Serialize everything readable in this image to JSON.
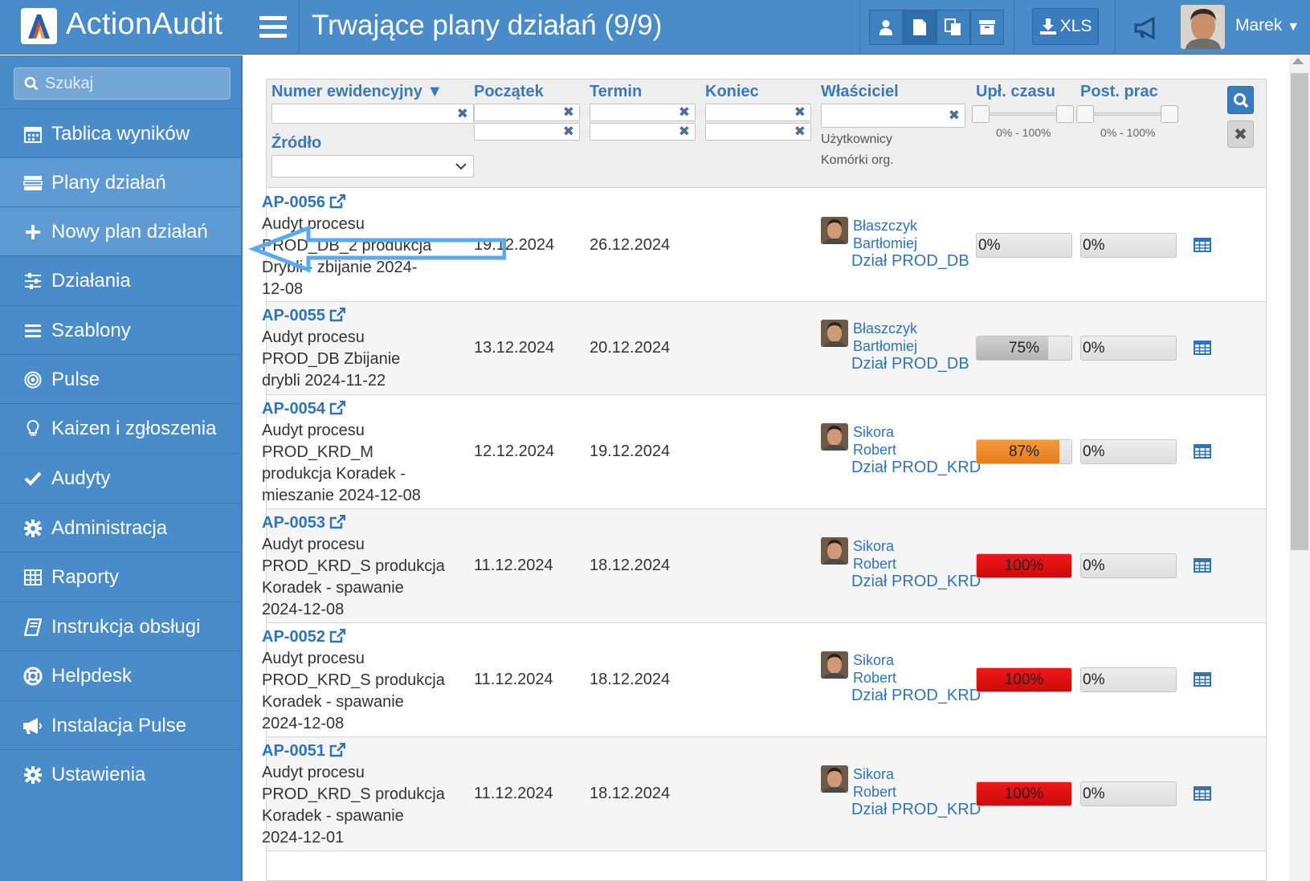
{
  "app": {
    "brand": "ActionAudit",
    "page_title": "Trwające plany działań (9/9)"
  },
  "toolbar": {
    "xls_label": "XLS",
    "user_name": "Marek"
  },
  "sidebar": {
    "search_placeholder": "Szukaj",
    "items": [
      {
        "label": "Tablica wyników",
        "icon": "calendar-icon"
      },
      {
        "label": "Plany działań",
        "icon": "tasks-icon"
      },
      {
        "label": "Nowy plan działań",
        "icon": "plus-icon"
      },
      {
        "label": "Działania",
        "icon": "sliders-icon"
      },
      {
        "label": "Szablony",
        "icon": "list-icon"
      },
      {
        "label": "Pulse",
        "icon": "target-icon"
      },
      {
        "label": "Kaizen i zgłoszenia",
        "icon": "lightbulb-icon"
      },
      {
        "label": "Audyty",
        "icon": "check-icon"
      },
      {
        "label": "Administracja",
        "icon": "gear-icon"
      },
      {
        "label": "Raporty",
        "icon": "table-icon"
      },
      {
        "label": "Instrukcja obsługi",
        "icon": "book-icon"
      },
      {
        "label": "Helpdesk",
        "icon": "lifebuoy-icon"
      },
      {
        "label": "Instalacja Pulse",
        "icon": "megaphone-icon"
      },
      {
        "label": "Ustawienia",
        "icon": "gear-icon"
      }
    ]
  },
  "table": {
    "headers": {
      "numer": "Numer ewidencyjny ▼",
      "zrodlo": "Źródło",
      "poczatek": "Początek",
      "termin": "Termin",
      "koniec": "Koniec",
      "wlasciciel": "Właściciel",
      "uzytkownicy": "Użytkownicy",
      "komorki": "Komórki org.",
      "uplyw": "Upł. czasu",
      "postep": "Post. prac",
      "range_uplyw": "0% - 100%",
      "range_postep": "0% - 100%"
    },
    "rows": [
      {
        "id": "AP-0056",
        "desc": [
          "Audyt procesu",
          "PROD_DB_2 produkcja",
          "Drybli - zbijanie 2024-",
          "12-08"
        ],
        "start": "19.12.2024",
        "term": "26.12.2024",
        "owner": [
          "Błaszczyk",
          "Bartłomiej"
        ],
        "dept": "Dział PROD_DB",
        "elapsed": "0%",
        "progress": "0%"
      },
      {
        "id": "AP-0055",
        "desc": [
          "Audyt procesu",
          "PROD_DB Zbijanie",
          "drybli 2024-11-22"
        ],
        "start": "13.12.2024",
        "term": "20.12.2024",
        "owner": [
          "Błaszczyk",
          "Bartłomiej"
        ],
        "dept": "Dział PROD_DB",
        "elapsed": "75%",
        "progress": "0%"
      },
      {
        "id": "AP-0054",
        "desc": [
          "Audyt procesu",
          "PROD_KRD_M",
          "produkcja Koradek -",
          "mieszanie 2024-12-08"
        ],
        "start": "12.12.2024",
        "term": "19.12.2024",
        "owner": [
          "Sikora",
          "Robert"
        ],
        "dept": "Dział PROD_KRD",
        "elapsed": "87%",
        "progress": "0%"
      },
      {
        "id": "AP-0053",
        "desc": [
          "Audyt procesu",
          "PROD_KRD_S produkcja",
          "Koradek - spawanie",
          "2024-12-08"
        ],
        "start": "11.12.2024",
        "term": "18.12.2024",
        "owner": [
          "Sikora",
          "Robert"
        ],
        "dept": "Dział PROD_KRD",
        "elapsed": "100%",
        "progress": "0%"
      },
      {
        "id": "AP-0052",
        "desc": [
          "Audyt procesu",
          "PROD_KRD_S produkcja",
          "Koradek - spawanie",
          "2024-12-08"
        ],
        "start": "11.12.2024",
        "term": "18.12.2024",
        "owner": [
          "Sikora",
          "Robert"
        ],
        "dept": "Dział PROD_KRD",
        "elapsed": "100%",
        "progress": "0%"
      },
      {
        "id": "AP-0051",
        "desc": [
          "Audyt procesu",
          "PROD_KRD_S produkcja",
          "Koradek - spawanie",
          "2024-12-01"
        ],
        "start": "11.12.2024",
        "term": "18.12.2024",
        "owner": [
          "Sikora",
          "Robert"
        ],
        "dept": "Dział PROD_KRD",
        "elapsed": "100%",
        "progress": "0%"
      }
    ]
  },
  "colors": {
    "primary": "#4a8cc9",
    "link": "#2f74b4",
    "bar_gray": "#c8c8c8",
    "bar_orange": "#ef8a2a",
    "bar_red": "#e01010"
  }
}
